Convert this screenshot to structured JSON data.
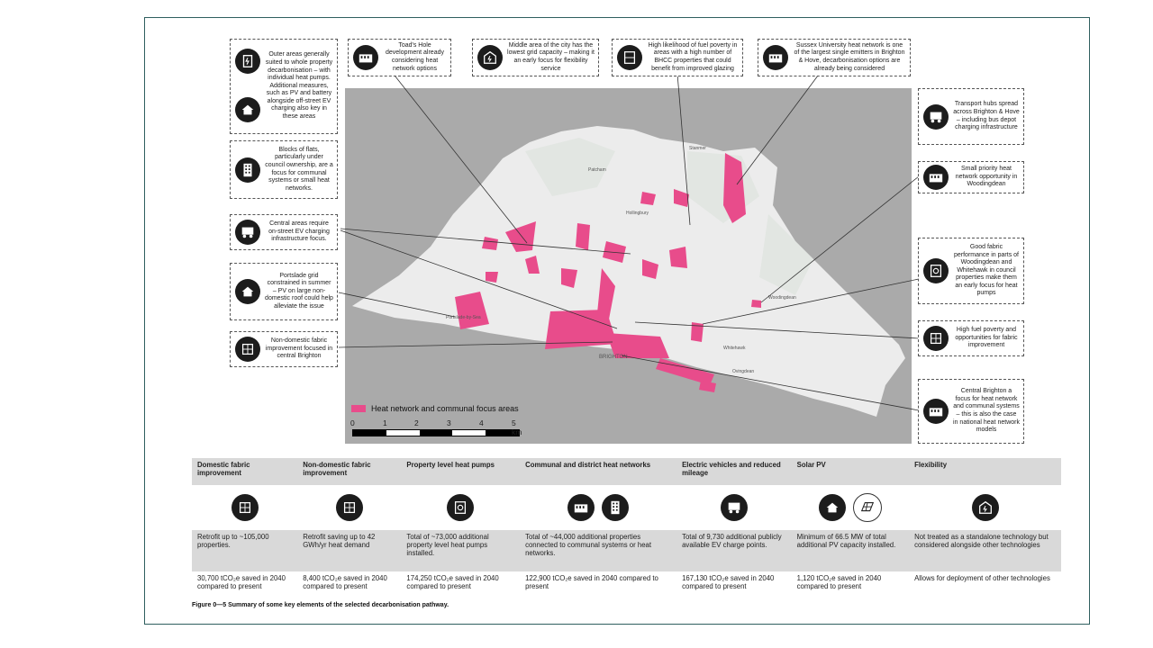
{
  "callouts": [
    {
      "id": "outer",
      "icon": "ev-charger-icon",
      "text": "Outer areas generally suited to whole property decarbonisation – with individual heat pumps. Additional measures, such as PV and battery alongside off-street EV charging also key in these areas"
    },
    {
      "id": "toad",
      "icon": "district-heat-icon",
      "text": "Toad's Hole development already considering heat network options"
    },
    {
      "id": "middle",
      "icon": "grid-flexibility-icon",
      "text": "Middle area of the city has the lowest grid capacity – making it an early focus for flexibility service"
    },
    {
      "id": "fuel",
      "icon": "window-glazing-icon",
      "text": "High likelihood of fuel poverty in areas with a high number of BHCC properties that could benefit from improved glazing"
    },
    {
      "id": "sussex",
      "icon": "district-heat-icon",
      "text": "Sussex University heat network is one of the largest single emitters in Brighton & Hove, decarbonisation options are already being considered"
    },
    {
      "id": "transport",
      "icon": "bus-ev-icon",
      "text": "Transport hubs spread across Brighton & Hove – including bus depot charging infrastructure"
    },
    {
      "id": "flats",
      "icon": "apartment-block-icon",
      "text": "Blocks of flats, particularly under council ownership, are a focus for communal systems or small heat networks."
    },
    {
      "id": "woodingdean",
      "icon": "district-heat-icon",
      "text": "Small priority heat network opportunity in Woodingdean"
    },
    {
      "id": "central-ev",
      "icon": "bus-ev-icon",
      "text": "Central areas require on-street EV charging infrastructure focus."
    },
    {
      "id": "goodfabric",
      "icon": "heat-pump-icon",
      "text": "Good fabric performance in parts of Woodingdean and Whitehawk in council properties make them an early focus for heat pumps"
    },
    {
      "id": "portslade",
      "icon": "house-icon",
      "text": "Portslade grid constrained in summer – PV on large non-domestic roof could help alleviate the issue"
    },
    {
      "id": "highfuel",
      "icon": "insulation-icon",
      "text": "High fuel poverty and opportunities for fabric improvement"
    },
    {
      "id": "nondom",
      "icon": "insulation-icon",
      "text": "Non-domestic fabric improvement focused in central Brighton"
    },
    {
      "id": "centralbrighton",
      "icon": "district-heat-icon",
      "text": "Central Brighton a focus for heat network and communal systems – this is also the case in national heat network models"
    }
  ],
  "map": {
    "place_labels": [
      "Portslade-by-Sea",
      "BRIGHTON",
      "Ovingdean",
      "Woodingdean",
      "Patcham",
      "Hollingbury",
      "Stanmer",
      "Whitehawk"
    ]
  },
  "legend": {
    "label": "Heat network and communal focus areas",
    "color": "#e84c8b"
  },
  "scale": {
    "ticks": [
      "0",
      "1",
      "2",
      "3",
      "4",
      "5 km"
    ]
  },
  "table": {
    "headers": [
      "Domestic fabric improvement",
      "Non-domestic fabric improvement",
      "Property level heat pumps",
      "Communal and district heat networks",
      "Electric vehicles and reduced mileage",
      "Solar PV",
      "Flexibility"
    ],
    "icons": [
      [
        "insulation-icon"
      ],
      [
        "insulation-icon"
      ],
      [
        "heat-pump-icon"
      ],
      [
        "district-heat-icon",
        "apartment-block-icon"
      ],
      [
        "bus-ev-icon"
      ],
      [
        "house-icon",
        "solar-panel-icon"
      ],
      [
        "grid-flexibility-icon"
      ]
    ],
    "descriptions": [
      "Retrofit up to ~105,000 properties.",
      "Retrofit saving up to 42 GWh/yr heat demand",
      "Total of ~73,000 additional property level heat pumps installed.",
      "Total of ~44,000 additional properties connected to communal systems or heat networks.",
      "Total of 9,730 additional publicly available EV charge points.",
      "Minimum of 66.5 MW of total additional PV capacity installed.",
      "Not treated as a standalone technology but considered alongside other technologies"
    ],
    "savings": [
      "30,700 tCO₂e saved in 2040 compared to present",
      "8,400 tCO₂e saved in 2040 compared to present",
      "174,250 tCO₂e saved in 2040 compared to present",
      "122,900 tCO₂e saved in 2040 compared to present",
      "167,130 tCO₂e saved in 2040 compared to present",
      "1,120 tCO₂e saved in 2040 compared to present",
      "Allows for deployment of other technologies"
    ]
  },
  "caption": "Figure 0—5 Summary of some key elements of the selected decarbonisation pathway.",
  "colors": {
    "accent": "#e84c8b",
    "frame": "#2f5f5f",
    "table_band": "#d9d9d9",
    "icon_bg": "#1c1c1c"
  }
}
